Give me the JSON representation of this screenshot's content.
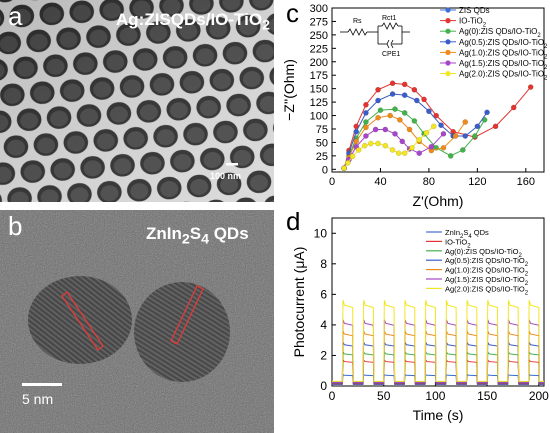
{
  "panel_a": {
    "letter": "a",
    "title_html": "Ag:ZISQDs/IO-TiO<sub>2</sub>",
    "scale_label": "100 nm"
  },
  "panel_b": {
    "letter": "b",
    "title_html": "ZnIn<sub>2</sub>S<sub>4</sub> QDs",
    "scale_label": "5 nm"
  },
  "panel_c": {
    "letter": "c",
    "circuit": {
      "rs": "Rs",
      "rct": "Rct1",
      "cpe": "CPE1"
    }
  },
  "panel_d": {
    "letter": "d"
  },
  "colors": {
    "zis": "#3b6fd6",
    "io": "#e3342f",
    "ag0": "#44b24a",
    "ag05": "#3a5ec9",
    "ag10": "#ef8a1c",
    "ag15": "#a646c9",
    "ag20": "#f2e622"
  },
  "chart_data": [
    {
      "type": "scatter",
      "xlabel": "Z'(Ohm)",
      "ylabel": "−Z''(Ohm)",
      "xlim": [
        0,
        175
      ],
      "ylim": [
        -5,
        300
      ],
      "xticks": [
        0,
        40,
        80,
        120,
        160
      ],
      "yticks": [
        0,
        25,
        50,
        75,
        100,
        125,
        150,
        175,
        200,
        225,
        250,
        275,
        300
      ],
      "legend_position": "top-right",
      "series": [
        {
          "name": "ZIS QDs",
          "color": "#3b6fd6",
          "x": [],
          "y": []
        },
        {
          "name_html": "IO-TiO<tspan baseline-shift='sub' font-size='6'>2</tspan>",
          "name_text": "IO-TiO2",
          "color": "#e3342f",
          "x": [
            10,
            14,
            20,
            28,
            38,
            50,
            60,
            68,
            76,
            86,
            100,
            118,
            135,
            150,
            164
          ],
          "y": [
            2,
            35,
            80,
            120,
            148,
            160,
            158,
            148,
            130,
            100,
            70,
            60,
            80,
            115,
            153
          ]
        },
        {
          "name_html": "Ag(0):ZIS QDs/IO-TiO<tspan baseline-shift='sub' font-size='6'>2</tspan>",
          "name_text": "Ag(0):ZIS QDs/IO-TiO2",
          "color": "#44b24a",
          "x": [
            10,
            14,
            20,
            28,
            40,
            52,
            60,
            68,
            76,
            86,
            98,
            108,
            118,
            126
          ],
          "y": [
            2,
            25,
            58,
            88,
            110,
            112,
            105,
            90,
            66,
            40,
            25,
            36,
            62,
            92
          ]
        },
        {
          "name_html": "Ag(0.5):ZIS QDs/IO-TiO<tspan baseline-shift='sub' font-size='6'>2</tspan>",
          "name_text": "Ag(0.5):ZIS QDs/IO-TiO2",
          "color": "#3a5ec9",
          "x": [
            10,
            14,
            20,
            28,
            38,
            50,
            60,
            70,
            80,
            90,
            100,
            110,
            120,
            128
          ],
          "y": [
            2,
            30,
            70,
            105,
            128,
            140,
            138,
            128,
            108,
            82,
            62,
            62,
            80,
            106
          ]
        },
        {
          "name_html": "Ag(1.0):ZIS QDs/IO-TiO<tspan baseline-shift='sub' font-size='6'>2</tspan>",
          "name_text": "Ag(1.0):ZIS QDs/IO-TiO2",
          "color": "#ef8a1c",
          "x": [
            10,
            14,
            20,
            28,
            38,
            48,
            56,
            64,
            72,
            82,
            92,
            102,
            110
          ],
          "y": [
            2,
            22,
            52,
            78,
            96,
            100,
            92,
            74,
            52,
            35,
            40,
            62,
            88
          ]
        },
        {
          "name_html": "Ag(1.5):ZIS QDs/IO-TiO<tspan baseline-shift='sub' font-size='6'>2</tspan>",
          "name_text": "Ag(1.5):ZIS QDs/IO-TiO2",
          "color": "#a646c9",
          "x": [
            10,
            14,
            20,
            28,
            36,
            44,
            52,
            58,
            64,
            72,
            82,
            92
          ],
          "y": [
            2,
            18,
            42,
            62,
            74,
            74,
            66,
            52,
            38,
            30,
            42,
            66
          ]
        },
        {
          "name_html": "Ag(2.0):ZIS QDs/IO-TiO<tspan baseline-shift='sub' font-size='6'>2</tspan>",
          "name_text": "Ag(2.0):ZIS QDs/IO-TiO2",
          "color": "#f2e622",
          "x": [
            10,
            13,
            17,
            22,
            27,
            32,
            38,
            44,
            50,
            55,
            60,
            66,
            72,
            78,
            84
          ],
          "y": [
            2,
            12,
            24,
            36,
            44,
            48,
            48,
            44,
            36,
            30,
            30,
            40,
            55,
            68,
            80
          ]
        }
      ]
    },
    {
      "type": "line",
      "xlabel": "Time (s)",
      "ylabel": "Photocurrent (μA)",
      "xlim": [
        0,
        205
      ],
      "ylim": [
        0,
        11
      ],
      "xticks": [
        0,
        50,
        100,
        150,
        200
      ],
      "yticks": [
        0,
        2,
        4,
        6,
        8,
        10
      ],
      "legend_position": "top-right",
      "light_on_starts": [
        10,
        30,
        50,
        70,
        90,
        110,
        130,
        150,
        170,
        190
      ],
      "pulse_width": 10,
      "series": [
        {
          "name_html": "ZnIn<tspan baseline-shift='sub' font-size='6'>2</tspan>S<tspan baseline-shift='sub' font-size='6'>4</tspan> QDs",
          "name_text": "ZnIn2S4 QDs",
          "color": "#3b6fd6",
          "on": 0.7,
          "off": 0.1
        },
        {
          "name_html": "IO-TiO<tspan baseline-shift='sub' font-size='6'>2</tspan>",
          "name_text": "IO-TiO2",
          "color": "#e3342f",
          "on": 1.6,
          "off": 0.15
        },
        {
          "name_html": "Ag(0):ZIS QDs/IO-TiO<tspan baseline-shift='sub' font-size='6'>2</tspan>",
          "name_text": "Ag(0):ZIS QDs/IO-TiO2",
          "color": "#44b24a",
          "on": 2.1,
          "off": 0.2
        },
        {
          "name_html": "Ag(0.5):ZIS QDs/IO-TiO<tspan baseline-shift='sub' font-size='6'>2</tspan>",
          "name_text": "Ag(0.5):ZIS QDs/IO-TiO2",
          "color": "#3a5ec9",
          "on": 2.7,
          "off": 0.2
        },
        {
          "name_html": "Ag(1.0):ZIS QDs/IO-TiO<tspan baseline-shift='sub' font-size='6'>2</tspan>",
          "name_text": "Ag(1.0):ZIS QDs/IO-TiO2",
          "color": "#ef8a1c",
          "on": 3.4,
          "off": 0.25
        },
        {
          "name_html": "Ag(1.5):ZIS QDs/IO-TiO<tspan baseline-shift='sub' font-size='6'>2</tspan>",
          "name_text": "Ag(1.5):ZIS QDs/IO-TiO2",
          "color": "#a646c9",
          "on": 4.1,
          "off": 0.25
        },
        {
          "name_html": "Ag(2.0):ZIS QDs/IO-TiO<tspan baseline-shift='sub' font-size='6'>2</tspan>",
          "name_text": "Ag(2.0):ZIS QDs/IO-TiO2",
          "color": "#f2e622",
          "on": 5.3,
          "off": 0.3
        }
      ]
    }
  ]
}
